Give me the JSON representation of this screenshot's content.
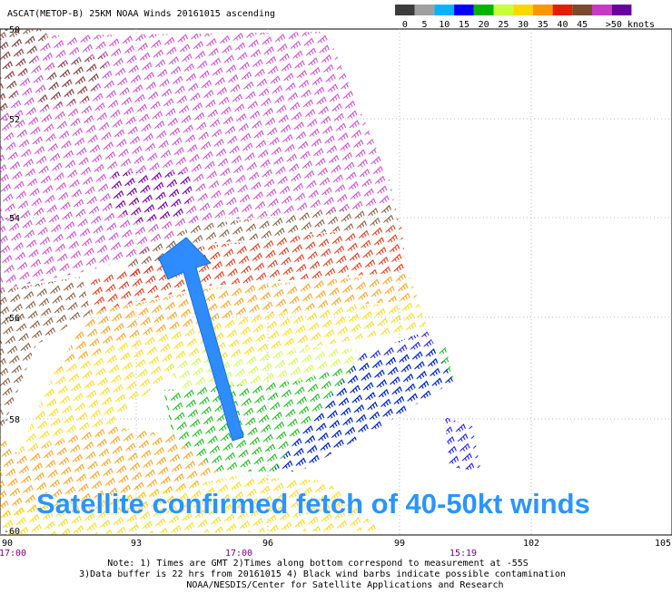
{
  "header": {
    "title": "ASCAT(METOP-B) 25KM NOAA Winds 20161015 ascending"
  },
  "legend": {
    "colors": [
      "#3c3c3c",
      "#a0a0a0",
      "#00b4ff",
      "#0000ff",
      "#00b400",
      "#c8ff3c",
      "#ffd700",
      "#ff9600",
      "#e02000",
      "#7a4a2a",
      "#c838c8",
      "#6a00a0"
    ],
    "labels": [
      "0",
      "5",
      "10",
      "15",
      "20",
      "25",
      "30",
      "35",
      "40",
      "45",
      ">50 knots"
    ]
  },
  "axes": {
    "lat_labels": [
      "-50",
      "-52",
      "-54",
      "-56",
      "-58",
      "-60"
    ],
    "lon_labels": [
      "90",
      "93",
      "96",
      "99",
      "102",
      "105"
    ],
    "time_labels": [
      "17:00",
      "17:00",
      "15:19"
    ]
  },
  "notes": [
    "Note: 1) Times are GMT 2)Times along bottom correspond to measurement at -55S",
    "3)Data buffer is 22 hrs from 20161015 4) Black wind barbs indicate possible contamination",
    "NOAA/NESDIS/Center for Satellite Applications and Research"
  ],
  "annotation": "Satellite confirmed fetch of 40-50kt winds"
}
